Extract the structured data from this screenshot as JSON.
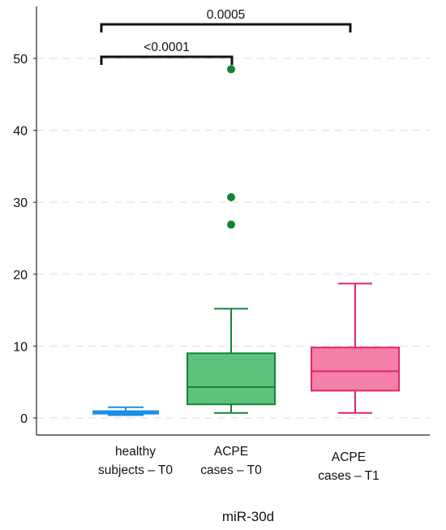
{
  "chart_data": {
    "type": "box",
    "xlabel": "miR-30d",
    "ylabel": "",
    "ylim": [
      0,
      55
    ],
    "yticks": [
      0,
      10,
      20,
      30,
      40,
      50
    ],
    "grid": "horizontal dashed",
    "categories": [
      "healthy subjects – T0",
      "ACPE cases – T0",
      "ACPE cases – T1"
    ],
    "category_lines": [
      [
        "healthy",
        "subjects – T0"
      ],
      [
        "ACPE",
        "cases – T0"
      ],
      [
        "ACPE",
        "cases – T1"
      ]
    ],
    "boxes": [
      {
        "category": "healthy subjects – T0",
        "min": 0.4,
        "q1": 0.6,
        "median": 0.75,
        "q3": 0.95,
        "max": 1.5,
        "outliers": [],
        "stroke": "#1a8fe6",
        "fill": "#3fa3ee"
      },
      {
        "category": "ACPE cases – T0",
        "min": 0.7,
        "q1": 1.9,
        "median": 4.3,
        "q3": 9.0,
        "max": 15.2,
        "outliers": [
          26.9,
          30.7,
          48.5
        ],
        "stroke": "#168238",
        "fill": "#5cc27e"
      },
      {
        "category": "ACPE cases – T1",
        "min": 0.7,
        "q1": 3.8,
        "median": 6.5,
        "q3": 9.8,
        "max": 18.7,
        "outliers": [],
        "stroke": "#e0246b",
        "fill": "#f47fa8"
      }
    ],
    "significance": [
      {
        "from": 0,
        "to": 1,
        "y": 50.5,
        "label": "<0.0001"
      },
      {
        "from": 0,
        "to": 2,
        "y": 55.0,
        "label": "0.0005"
      }
    ]
  }
}
